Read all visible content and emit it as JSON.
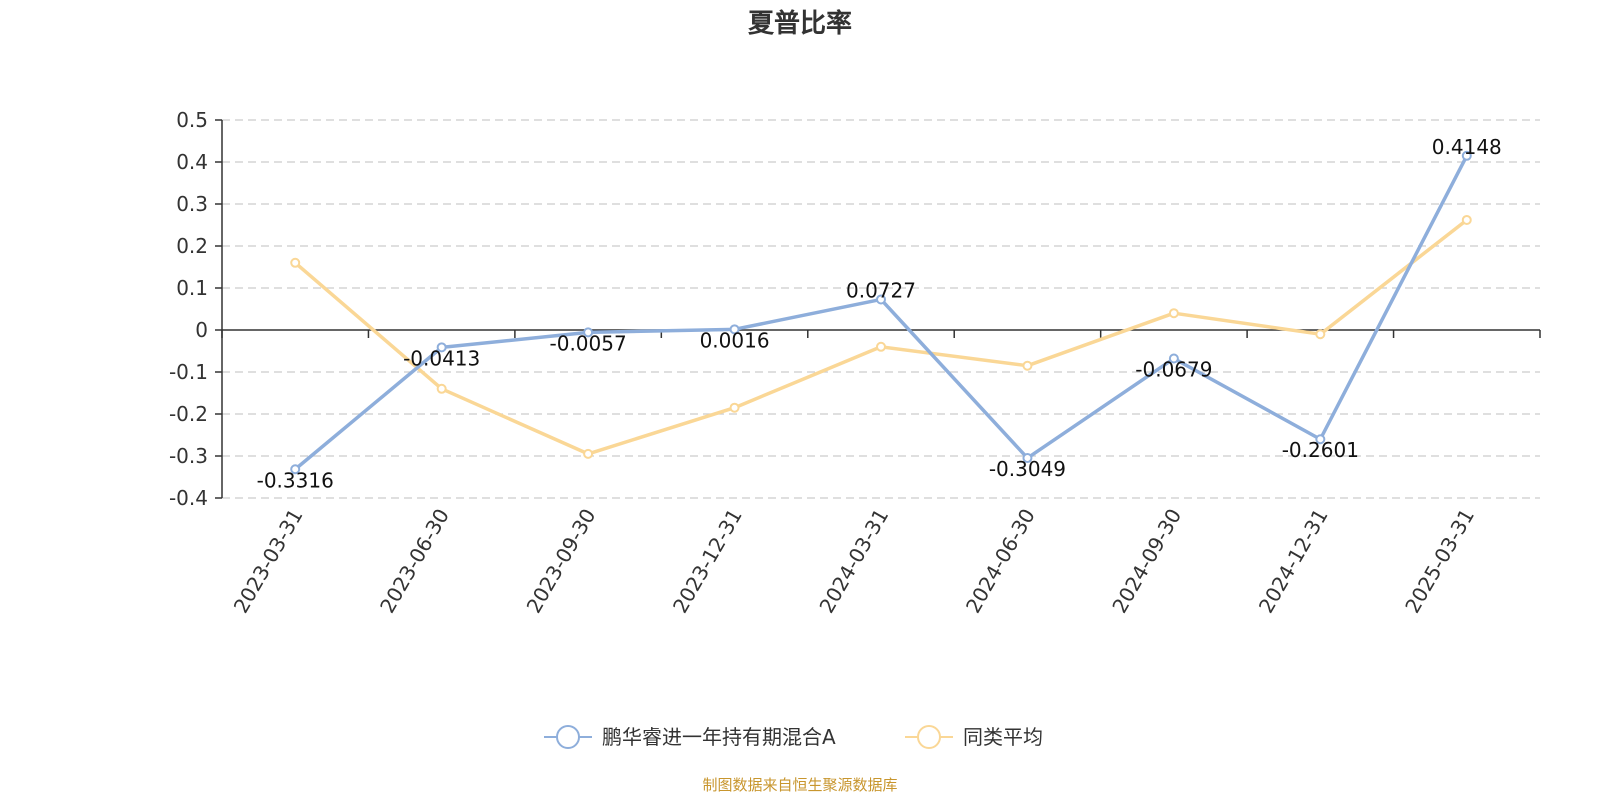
{
  "chart_data": {
    "type": "line",
    "title": "夏普比率",
    "xlabel": "",
    "ylabel": "",
    "categories": [
      "2023-03-31",
      "2023-06-30",
      "2023-09-30",
      "2023-12-31",
      "2024-03-31",
      "2024-06-30",
      "2024-09-30",
      "2024-12-31",
      "2025-03-31"
    ],
    "ylim": [
      -0.4,
      0.5
    ],
    "y_ticks": [
      "0.5",
      "0.4",
      "0.3",
      "0.2",
      "0.1",
      "0",
      "-0.1",
      "-0.2",
      "-0.3",
      "-0.4"
    ],
    "grid": true,
    "legend_position": "bottom-center",
    "series": [
      {
        "name": "鹏华睿进一年持有期混合A",
        "color": "#8eaedb",
        "values": [
          -0.3316,
          -0.0413,
          -0.0057,
          0.0016,
          0.0727,
          -0.3049,
          -0.0679,
          -0.2601,
          0.4148
        ],
        "labels": [
          "-0.3316",
          "-0.0413",
          "-0.0057",
          "0.0016",
          "0.0727",
          "-0.3049",
          "-0.0679",
          "-0.2601",
          "0.4148"
        ]
      },
      {
        "name": "同类平均",
        "color": "#fad796",
        "values": [
          0.16,
          -0.14,
          -0.295,
          -0.185,
          -0.04,
          -0.085,
          0.04,
          -0.01,
          0.262
        ]
      }
    ],
    "source": "制图数据来自恒生聚源数据库"
  }
}
